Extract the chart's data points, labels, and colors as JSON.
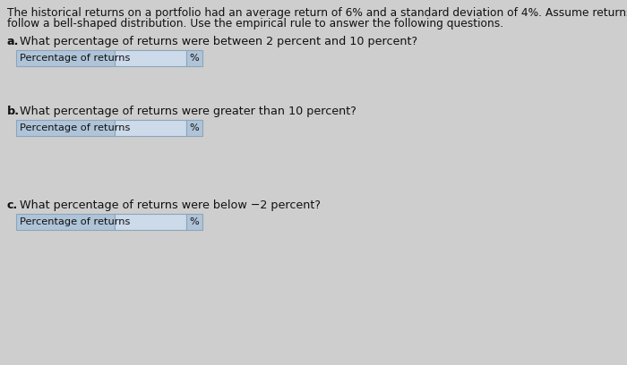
{
  "background_color": "#cecece",
  "intro_line1": "The historical returns on a portfolio had an average return of 6% and a standard deviation of 4%. Assume returns on the portfolio",
  "intro_line2": "follow a bell-shaped distribution. Use the empirical rule to answer the following questions.",
  "question_a_bold": "a.",
  "question_a_text": " What percentage of returns were between 2 percent and 10 percent?",
  "question_b_bold": "b.",
  "question_b_text": " What percentage of returns were greater than 10 percent?",
  "question_c_bold": "c.",
  "question_c_text": " What percentage of returns were below −2 percent?",
  "label_text": "Percentage of returns",
  "percent_sign": "%",
  "label_bg": "#b0c4d8",
  "input_bg": "#cddaea",
  "box_border": "#8aa5bc",
  "percent_bg": "#b0c4d8",
  "text_color": "#111111",
  "font_size_intro": 8.8,
  "font_size_question": 9.2,
  "font_size_label": 8.2
}
